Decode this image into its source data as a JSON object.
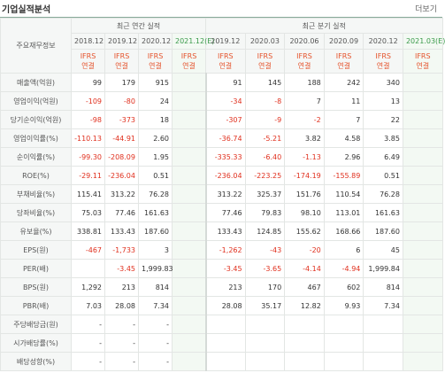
{
  "header": {
    "title": "기업실적분석",
    "more": "더보기"
  },
  "table": {
    "corner": "주요재무정보",
    "groups": [
      "최근 연간 실적",
      "최근 분기 실적"
    ],
    "periods": [
      "2018.12",
      "2019.12",
      "2020.12",
      "2021.12(E)",
      "2019.12",
      "2020.03",
      "2020.06",
      "2020.09",
      "2020.12",
      "2021.03(E)"
    ],
    "standards": [
      "IFRS\n연결",
      "IFRS\n연결",
      "IFRS\n연결",
      "IFRS\n연결",
      "IFRS\n연결",
      "IFRS\n연결",
      "IFRS\n연결",
      "IFRS\n연결",
      "IFRS\n연결",
      "IFRS\n연결"
    ],
    "rows": [
      {
        "label": "매출액(억원)",
        "cells": [
          "99",
          "179",
          "915",
          null,
          "91",
          "145",
          "188",
          "242",
          "340",
          null
        ]
      },
      {
        "label": "영업이익(억원)",
        "cells": [
          "-109",
          "-80",
          "24",
          null,
          "-34",
          "-8",
          "7",
          "11",
          "13",
          null
        ]
      },
      {
        "label": "당기순이익(억원)",
        "cells": [
          "-98",
          "-373",
          "18",
          null,
          "-307",
          "-9",
          "-2",
          "7",
          "22",
          null
        ]
      },
      {
        "label": "영업이익률(%)",
        "cells": [
          "-110.13",
          "-44.91",
          "2.60",
          null,
          "-36.74",
          "-5.21",
          "3.82",
          "4.58",
          "3.85",
          null
        ]
      },
      {
        "label": "순이익률(%)",
        "cells": [
          "-99.30",
          "-208.09",
          "1.95",
          null,
          "-335.33",
          "-6.40",
          "-1.13",
          "2.96",
          "6.49",
          null
        ]
      },
      {
        "label": "ROE(%)",
        "cells": [
          "-29.11",
          "-236.04",
          "0.51",
          null,
          "-236.04",
          "-223.25",
          "-174.19",
          "-155.89",
          "0.51",
          null
        ]
      },
      {
        "label": "부채비율(%)",
        "cells": [
          "115.41",
          "313.22",
          "76.28",
          null,
          "313.22",
          "325.37",
          "151.76",
          "110.54",
          "76.28",
          null
        ]
      },
      {
        "label": "당좌비율(%)",
        "cells": [
          "75.03",
          "77.46",
          "161.63",
          null,
          "77.46",
          "79.83",
          "98.10",
          "113.01",
          "161.63",
          null
        ]
      },
      {
        "label": "유보율(%)",
        "cells": [
          "338.81",
          "133.43",
          "187.60",
          null,
          "133.43",
          "124.85",
          "155.62",
          "168.66",
          "187.60",
          null
        ]
      },
      {
        "label": "EPS(원)",
        "cells": [
          "-467",
          "-1,733",
          "3",
          null,
          "-1,262",
          "-43",
          "-20",
          "6",
          "45",
          null
        ]
      },
      {
        "label": "PER(배)",
        "cells": [
          null,
          "-3.45",
          "1,999.83",
          null,
          "-3.45",
          "-3.65",
          "-4.14",
          "-4.94",
          "1,999.84",
          null
        ]
      },
      {
        "label": "BPS(원)",
        "cells": [
          "1,292",
          "213",
          "814",
          null,
          "213",
          "170",
          "467",
          "602",
          "814",
          null
        ]
      },
      {
        "label": "PBR(배)",
        "cells": [
          "7.03",
          "28.08",
          "7.34",
          null,
          "28.08",
          "35.17",
          "12.82",
          "9.93",
          "7.34",
          null
        ]
      },
      {
        "label": "주당배당금(원)",
        "cells": [
          "-",
          "-",
          "-",
          null,
          null,
          null,
          null,
          null,
          null,
          null
        ]
      },
      {
        "label": "시가배당률(%)",
        "cells": [
          "-",
          "-",
          "-",
          null,
          null,
          null,
          null,
          null,
          null,
          null
        ]
      },
      {
        "label": "배당성향(%)",
        "cells": [
          "-",
          "-",
          "-",
          null,
          null,
          null,
          null,
          null,
          null,
          null
        ]
      }
    ]
  }
}
